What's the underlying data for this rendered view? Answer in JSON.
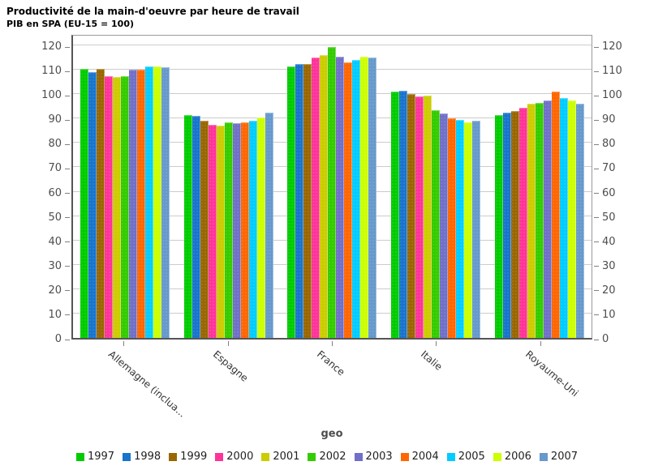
{
  "header": {
    "title": "Productivité de la main-d'oeuvre par heure de travail",
    "subtitle": "PIB en SPA (EU-15 = 100)"
  },
  "colors": {
    "grid": "#CCCCCC",
    "plot_border": "#9A9A9A",
    "axis_line": "#555555",
    "tick_text": "#4D4D4D",
    "category_text": "#333333"
  },
  "chart_data": {
    "type": "bar",
    "title": "Productivité de la main-d'oeuvre par heure de travail",
    "subtitle": "PIB en SPA (EU-15 = 100)",
    "xlabel": "geo",
    "ylabel": "",
    "ylim": [
      0,
      125
    ],
    "yticks": [
      0,
      10,
      20,
      30,
      40,
      50,
      60,
      70,
      80,
      90,
      100,
      110,
      120
    ],
    "grid": true,
    "y_axis_sides": [
      "left",
      "right"
    ],
    "legend_position": "bottom",
    "categories": [
      "Allemagne (inclua...",
      "Espagne",
      "France",
      "Italie",
      "Royaume-Uni"
    ],
    "series": [
      {
        "name": "1997",
        "color": "#00CC00",
        "values": [
          110.5,
          91.5,
          111.5,
          101.0,
          91.5
        ]
      },
      {
        "name": "1998",
        "color": "#1874CD",
        "values": [
          109.0,
          91.0,
          112.5,
          101.5,
          92.5
        ]
      },
      {
        "name": "1999",
        "color": "#996600",
        "values": [
          110.5,
          89.0,
          112.5,
          100.0,
          93.0
        ]
      },
      {
        "name": "2000",
        "color": "#FF3399",
        "values": [
          107.5,
          87.5,
          115.0,
          99.0,
          94.5
        ]
      },
      {
        "name": "2001",
        "color": "#CCCC00",
        "values": [
          107.0,
          87.0,
          116.0,
          99.5,
          96.0
        ]
      },
      {
        "name": "2002",
        "color": "#33CC00",
        "values": [
          107.5,
          88.5,
          119.5,
          93.5,
          96.5
        ]
      },
      {
        "name": "2003",
        "color": "#7070C8",
        "values": [
          110.0,
          88.0,
          115.5,
          92.0,
          97.5
        ]
      },
      {
        "name": "2004",
        "color": "#FF6600",
        "values": [
          110.0,
          88.5,
          113.0,
          90.0,
          101.0
        ]
      },
      {
        "name": "2005",
        "color": "#00CCFF",
        "values": [
          111.5,
          89.0,
          114.0,
          89.5,
          98.5
        ]
      },
      {
        "name": "2006",
        "color": "#CCFF00",
        "values": [
          111.5,
          90.5,
          115.5,
          88.5,
          97.5
        ]
      },
      {
        "name": "2007",
        "color": "#6699CC",
        "values": [
          111.0,
          92.5,
          115.0,
          89.0,
          96.0
        ]
      }
    ]
  }
}
